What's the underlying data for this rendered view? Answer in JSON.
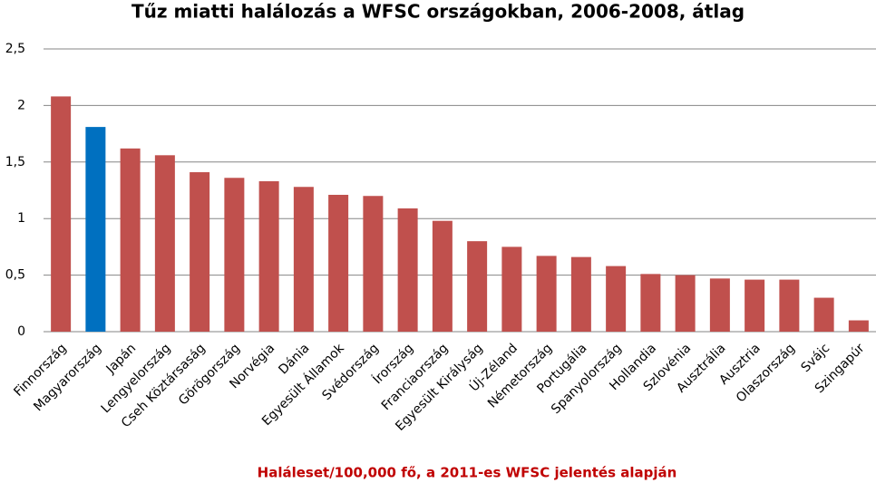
{
  "chart_data": {
    "type": "bar",
    "title": "Tűz miatti halálozás a WFSC országokban, 2006-2008, átlag",
    "x_label": "Haláleset/100,000 fő, a 2011-es WFSC jelentés alapján",
    "categories": [
      "Finnország",
      "Magyarország",
      "Japán",
      "Lengyelország",
      "Cseh Köztársaság",
      "Görögország",
      "Norvégia",
      "Dánia",
      "Egyesült Államok",
      "Svédország",
      "Írország",
      "Franciaország",
      "Egyesült Királyság",
      "Új-Zéland",
      "Németország",
      "Portugália",
      "Spanyolország",
      "Hollandia",
      "Szlovénia",
      "Ausztrália",
      "Ausztria",
      "Olaszország",
      "Svájc",
      "Szingapúr"
    ],
    "values": [
      2.08,
      1.81,
      1.62,
      1.56,
      1.41,
      1.36,
      1.33,
      1.28,
      1.21,
      1.2,
      1.09,
      0.98,
      0.8,
      0.75,
      0.67,
      0.66,
      0.58,
      0.51,
      0.5,
      0.47,
      0.46,
      0.46,
      0.3,
      0.1
    ],
    "colors": [
      "#c0504d",
      "#0070c0",
      "#c0504d",
      "#c0504d",
      "#c0504d",
      "#c0504d",
      "#c0504d",
      "#c0504d",
      "#c0504d",
      "#c0504d",
      "#c0504d",
      "#c0504d",
      "#c0504d",
      "#c0504d",
      "#c0504d",
      "#c0504d",
      "#c0504d",
      "#c0504d",
      "#c0504d",
      "#c0504d",
      "#c0504d",
      "#c0504d",
      "#c0504d",
      "#c0504d"
    ],
    "x_label_color": "#c00000",
    "ylim": [
      0,
      2.5
    ],
    "yticks": [
      0,
      {
        "value": 0.5,
        "label": "0,5"
      },
      1,
      {
        "value": 1.5,
        "label": "1,5"
      },
      2,
      {
        "value": 2.5,
        "label": "2,5"
      }
    ],
    "grid": true
  }
}
